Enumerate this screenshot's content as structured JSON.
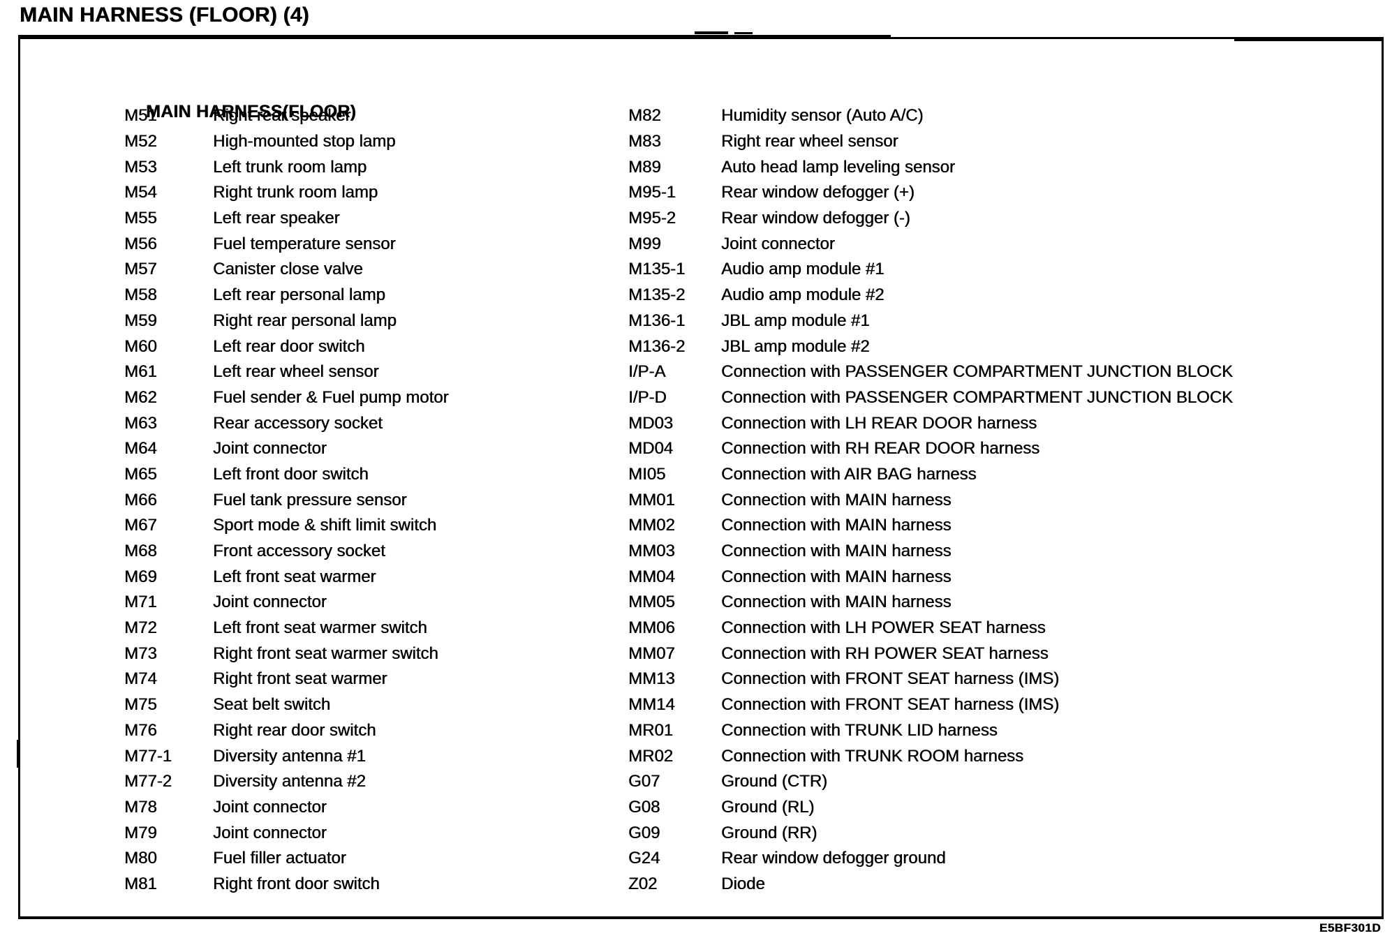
{
  "colors": {
    "ink": "#000000",
    "paper": "#ffffff"
  },
  "page": {
    "title": "MAIN HARNESS (FLOOR) (4)",
    "section_heading": "MAIN HARNESS(FLOOR)",
    "figure_code": "E5BF301D"
  },
  "connector_table": {
    "left_column": [
      {
        "code": "M51",
        "description": "Right rear speaker"
      },
      {
        "code": "M52",
        "description": "High-mounted stop lamp"
      },
      {
        "code": "M53",
        "description": "Left trunk room lamp"
      },
      {
        "code": "M54",
        "description": "Right trunk room lamp"
      },
      {
        "code": "M55",
        "description": "Left rear speaker"
      },
      {
        "code": "M56",
        "description": "Fuel temperature sensor"
      },
      {
        "code": "M57",
        "description": "Canister close valve"
      },
      {
        "code": "M58",
        "description": "Left rear personal lamp"
      },
      {
        "code": "M59",
        "description": "Right rear personal lamp"
      },
      {
        "code": "M60",
        "description": "Left rear door switch"
      },
      {
        "code": "M61",
        "description": "Left rear wheel sensor"
      },
      {
        "code": "M62",
        "description": "Fuel sender & Fuel pump motor"
      },
      {
        "code": "M63",
        "description": "Rear accessory socket"
      },
      {
        "code": "M64",
        "description": "Joint connector"
      },
      {
        "code": "M65",
        "description": "Left front door switch"
      },
      {
        "code": "M66",
        "description": "Fuel tank pressure sensor"
      },
      {
        "code": "M67",
        "description": "Sport mode & shift limit switch"
      },
      {
        "code": "M68",
        "description": "Front accessory socket"
      },
      {
        "code": "M69",
        "description": "Left front seat warmer"
      },
      {
        "code": "M71",
        "description": "Joint connector"
      },
      {
        "code": "M72",
        "description": "Left front seat warmer switch"
      },
      {
        "code": "M73",
        "description": "Right front seat warmer switch"
      },
      {
        "code": "M74",
        "description": "Right front seat warmer"
      },
      {
        "code": "M75",
        "description": "Seat belt switch"
      },
      {
        "code": "M76",
        "description": "Right rear door switch"
      },
      {
        "code": "M77-1",
        "description": "Diversity antenna #1"
      },
      {
        "code": "M77-2",
        "description": "Diversity antenna #2"
      },
      {
        "code": "M78",
        "description": "Joint connector"
      },
      {
        "code": "M79",
        "description": "Joint connector"
      },
      {
        "code": "M80",
        "description": "Fuel filler actuator"
      },
      {
        "code": "M81",
        "description": "Right front door switch"
      }
    ],
    "right_column": [
      {
        "code": "M82",
        "description": "Humidity sensor (Auto A/C)"
      },
      {
        "code": "M83",
        "description": "Right rear wheel sensor"
      },
      {
        "code": "M89",
        "description": "Auto head lamp leveling sensor"
      },
      {
        "code": "M95-1",
        "description": "Rear window defogger (+)"
      },
      {
        "code": "M95-2",
        "description": "Rear window defogger (-)"
      },
      {
        "code": "M99",
        "description": "Joint connector"
      },
      {
        "code": "M135-1",
        "description": "Audio amp module #1"
      },
      {
        "code": "M135-2",
        "description": "Audio amp module #2"
      },
      {
        "code": "M136-1",
        "description": "JBL amp module #1"
      },
      {
        "code": "M136-2",
        "description": "JBL amp module #2"
      },
      {
        "code": "I/P-A",
        "description": "Connection with PASSENGER COMPARTMENT JUNCTION BLOCK"
      },
      {
        "code": "I/P-D",
        "description": "Connection with PASSENGER COMPARTMENT JUNCTION BLOCK"
      },
      {
        "code": "MD03",
        "description": "Connection with LH REAR DOOR harness"
      },
      {
        "code": "MD04",
        "description": "Connection with RH REAR DOOR harness"
      },
      {
        "code": "MI05",
        "description": "Connection with AIR BAG harness"
      },
      {
        "code": "MM01",
        "description": "Connection with MAIN harness"
      },
      {
        "code": "MM02",
        "description": "Connection with MAIN harness"
      },
      {
        "code": "MM03",
        "description": "Connection with MAIN harness"
      },
      {
        "code": "MM04",
        "description": "Connection with MAIN harness"
      },
      {
        "code": "MM05",
        "description": "Connection with MAIN harness"
      },
      {
        "code": "MM06",
        "description": "Connection with LH POWER SEAT harness"
      },
      {
        "code": "MM07",
        "description": "Connection with RH POWER SEAT harness"
      },
      {
        "code": "MM13",
        "description": "Connection with FRONT SEAT harness (IMS)"
      },
      {
        "code": "MM14",
        "description": "Connection with FRONT SEAT harness (IMS)"
      },
      {
        "code": "MR01",
        "description": "Connection with TRUNK LID harness"
      },
      {
        "code": "MR02",
        "description": "Connection with TRUNK ROOM harness"
      },
      {
        "code": "G07",
        "description": "Ground (CTR)"
      },
      {
        "code": "G08",
        "description": "Ground (RL)"
      },
      {
        "code": "G09",
        "description": "Ground (RR)"
      },
      {
        "code": "G24",
        "description": "Rear window defogger ground"
      },
      {
        "code": "Z02",
        "description": "Diode"
      }
    ]
  }
}
